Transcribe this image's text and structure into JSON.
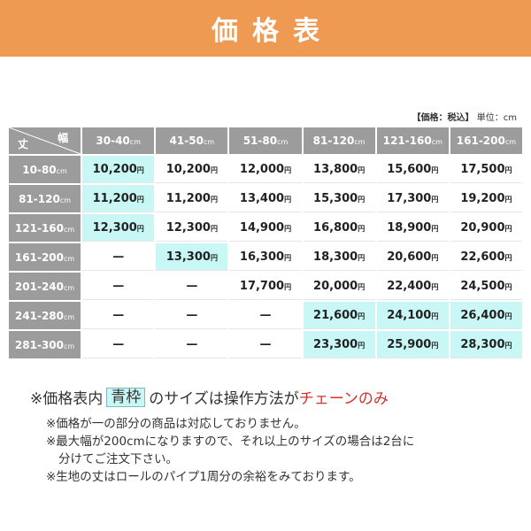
{
  "header": {
    "title": "価格表"
  },
  "unit": {
    "tax": "【価格：税込】",
    "unit": "単位：cm"
  },
  "table": {
    "corner": {
      "length": "丈",
      "width": "幅"
    },
    "columns": [
      {
        "range": "30-40",
        "unit": "cm"
      },
      {
        "range": "41-50",
        "unit": "cm"
      },
      {
        "range": "51-80",
        "unit": "cm"
      },
      {
        "range": "81-120",
        "unit": "cm"
      },
      {
        "range": "121-160",
        "unit": "cm"
      },
      {
        "range": "161-200",
        "unit": "cm"
      }
    ],
    "rows": [
      {
        "range": "10-80",
        "unit": "cm",
        "cells": [
          {
            "v": "10,200",
            "y": "円",
            "hl": true
          },
          {
            "v": "10,200",
            "y": "円"
          },
          {
            "v": "12,000",
            "y": "円"
          },
          {
            "v": "13,800",
            "y": "円"
          },
          {
            "v": "15,600",
            "y": "円"
          },
          {
            "v": "17,500",
            "y": "円"
          }
        ]
      },
      {
        "range": "81-120",
        "unit": "cm",
        "cells": [
          {
            "v": "11,200",
            "y": "円",
            "hl": true
          },
          {
            "v": "11,200",
            "y": "円"
          },
          {
            "v": "13,400",
            "y": "円"
          },
          {
            "v": "15,300",
            "y": "円"
          },
          {
            "v": "17,300",
            "y": "円"
          },
          {
            "v": "19,200",
            "y": "円"
          }
        ]
      },
      {
        "range": "121-160",
        "unit": "cm",
        "cells": [
          {
            "v": "12,300",
            "y": "円",
            "hl": true
          },
          {
            "v": "12,300",
            "y": "円"
          },
          {
            "v": "14,900",
            "y": "円"
          },
          {
            "v": "16,800",
            "y": "円"
          },
          {
            "v": "18,900",
            "y": "円"
          },
          {
            "v": "20,900",
            "y": "円"
          }
        ]
      },
      {
        "range": "161-200",
        "unit": "cm",
        "cells": [
          {
            "v": "—",
            "y": ""
          },
          {
            "v": "13,300",
            "y": "円",
            "hl": true
          },
          {
            "v": "16,300",
            "y": "円"
          },
          {
            "v": "18,300",
            "y": "円"
          },
          {
            "v": "20,600",
            "y": "円"
          },
          {
            "v": "22,600",
            "y": "円"
          }
        ]
      },
      {
        "range": "201-240",
        "unit": "cm",
        "cells": [
          {
            "v": "—",
            "y": ""
          },
          {
            "v": "—",
            "y": ""
          },
          {
            "v": "17,700",
            "y": "円"
          },
          {
            "v": "20,000",
            "y": "円"
          },
          {
            "v": "22,400",
            "y": "円"
          },
          {
            "v": "24,500",
            "y": "円"
          }
        ]
      },
      {
        "range": "241-280",
        "unit": "cm",
        "cells": [
          {
            "v": "—",
            "y": ""
          },
          {
            "v": "—",
            "y": ""
          },
          {
            "v": "—",
            "y": ""
          },
          {
            "v": "21,600",
            "y": "円",
            "hl": true
          },
          {
            "v": "24,100",
            "y": "円",
            "hl": true
          },
          {
            "v": "26,400",
            "y": "円",
            "hl": true
          }
        ]
      },
      {
        "range": "281-300",
        "unit": "cm",
        "cells": [
          {
            "v": "—",
            "y": ""
          },
          {
            "v": "—",
            "y": ""
          },
          {
            "v": "—",
            "y": ""
          },
          {
            "v": "23,300",
            "y": "円",
            "hl": true
          },
          {
            "v": "25,900",
            "y": "円",
            "hl": true
          },
          {
            "v": "28,300",
            "y": "円",
            "hl": true
          }
        ]
      }
    ]
  },
  "notes": {
    "main_prefix": "※価格表内",
    "main_box": "青枠",
    "main_mid": "のサイズは操作方法が",
    "main_red": "チェーンのみ",
    "sub1": "※価格が一の部分の商品は対応しておりません。",
    "sub2a": "※最大幅が200cmになりますので、それ以上のサイズの場合は2台に",
    "sub2b": "分けてご注文下さい。",
    "sub3": "※生地の丈はロールのパイプ1周分の余裕をみております。"
  },
  "colors": {
    "header": "#ef9a52",
    "highlight": "#c8f7f6",
    "head_cell": "#9c9c9c",
    "note_red": "#d6302b"
  }
}
